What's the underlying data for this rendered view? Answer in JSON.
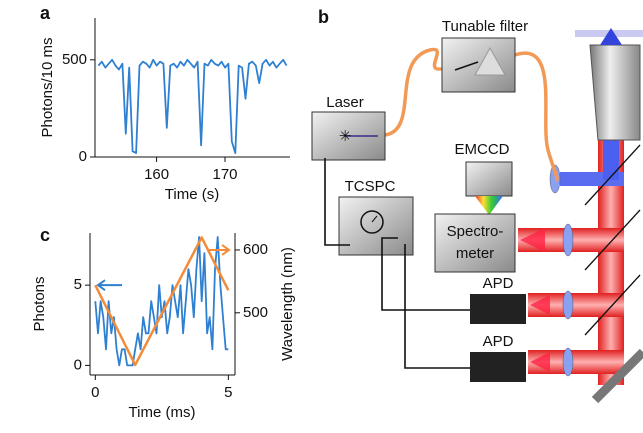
{
  "chart_data": [
    {
      "type": "line",
      "panel_label": "a",
      "xlabel": "Time (s)",
      "ylabel": "Photons/10 ms",
      "xlim": [
        151,
        179.5
      ],
      "xticks": [
        160,
        170
      ],
      "ylim": [
        0,
        715
      ],
      "yticks": [
        0,
        500
      ],
      "series": [
        {
          "color": "#2f80d1",
          "x": [
            151.5,
            152,
            152.5,
            153,
            153.5,
            154,
            154.5,
            155,
            155.5,
            156,
            156.5,
            157,
            157.5,
            158,
            158.5,
            159,
            159.5,
            160,
            160.5,
            161,
            161.5,
            162,
            162.5,
            163,
            163.5,
            164,
            164.5,
            165,
            165.5,
            166,
            166.5,
            167,
            167.5,
            168,
            168.5,
            169,
            169.5,
            170,
            170.5,
            171,
            171.5,
            172,
            172.5,
            173,
            173.5,
            174,
            174.5,
            175,
            175.5,
            176,
            176.5,
            177,
            177.5,
            178,
            178.5,
            179
          ],
          "values": [
            470,
            490,
            460,
            480,
            500,
            470,
            450,
            480,
            120,
            460,
            30,
            20,
            470,
            490,
            480,
            460,
            500,
            470,
            490,
            480,
            150,
            470,
            480,
            460,
            490,
            470,
            500,
            480,
            460,
            490,
            60,
            480,
            470,
            500,
            480,
            470,
            490,
            460,
            480,
            80,
            20,
            470,
            460,
            300,
            480,
            490,
            470,
            380,
            480,
            500,
            470,
            490,
            460,
            480,
            500,
            470
          ]
        }
      ]
    },
    {
      "type": "line",
      "panel_label": "c",
      "xlabel": "Time (ms)",
      "ylabel": "Photons",
      "y2label": "Wavelength (nm)",
      "xlim": [
        -0.2,
        5.25
      ],
      "xticks": [
        0,
        5
      ],
      "ylim": [
        -0.6,
        8.25
      ],
      "yticks": [
        0,
        5
      ],
      "y2lim": [
        401,
        627
      ],
      "y2ticks": [
        500,
        600
      ],
      "series": [
        {
          "color": "#2f80d1",
          "x": [
            0,
            0.1,
            0.2,
            0.3,
            0.4,
            0.5,
            0.6,
            0.7,
            0.8,
            0.9,
            1,
            1.1,
            1.2,
            1.3,
            1.4,
            1.5,
            1.6,
            1.7,
            1.8,
            1.9,
            2,
            2.1,
            2.2,
            2.3,
            2.4,
            2.5,
            2.6,
            2.7,
            2.8,
            2.9,
            3,
            3.1,
            3.2,
            3.3,
            3.4,
            3.5,
            3.6,
            3.7,
            3.8,
            3.9,
            4,
            4.1,
            4.2,
            4.3,
            4.4,
            4.5,
            4.6,
            4.7,
            4.8,
            4.9,
            5
          ],
          "values": [
            4,
            2,
            4,
            3,
            1,
            4,
            2,
            3,
            1,
            0,
            1,
            1,
            0,
            0,
            0,
            1,
            2,
            1,
            3,
            2,
            2,
            4,
            3,
            2,
            5,
            3,
            4,
            2,
            3,
            5,
            4,
            3,
            5,
            2,
            4,
            6,
            5,
            3,
            6,
            8,
            4,
            7,
            2,
            3,
            1,
            6,
            8,
            5,
            3,
            1,
            1
          ]
        },
        {
          "color": "#f28c3a",
          "axis": "y2",
          "x": [
            0,
            1.5,
            4,
            5
          ],
          "values": [
            544,
            417,
            620,
            536
          ]
        }
      ]
    }
  ],
  "diagram": {
    "panel_label": "b",
    "tunable_filter": "Tunable filter",
    "laser": "Laser",
    "emccd": "EMCCD",
    "tcspc": "TCSPC",
    "spectrometer": [
      "Spectro-",
      "meter"
    ],
    "apd": [
      "APD",
      "APD"
    ]
  }
}
